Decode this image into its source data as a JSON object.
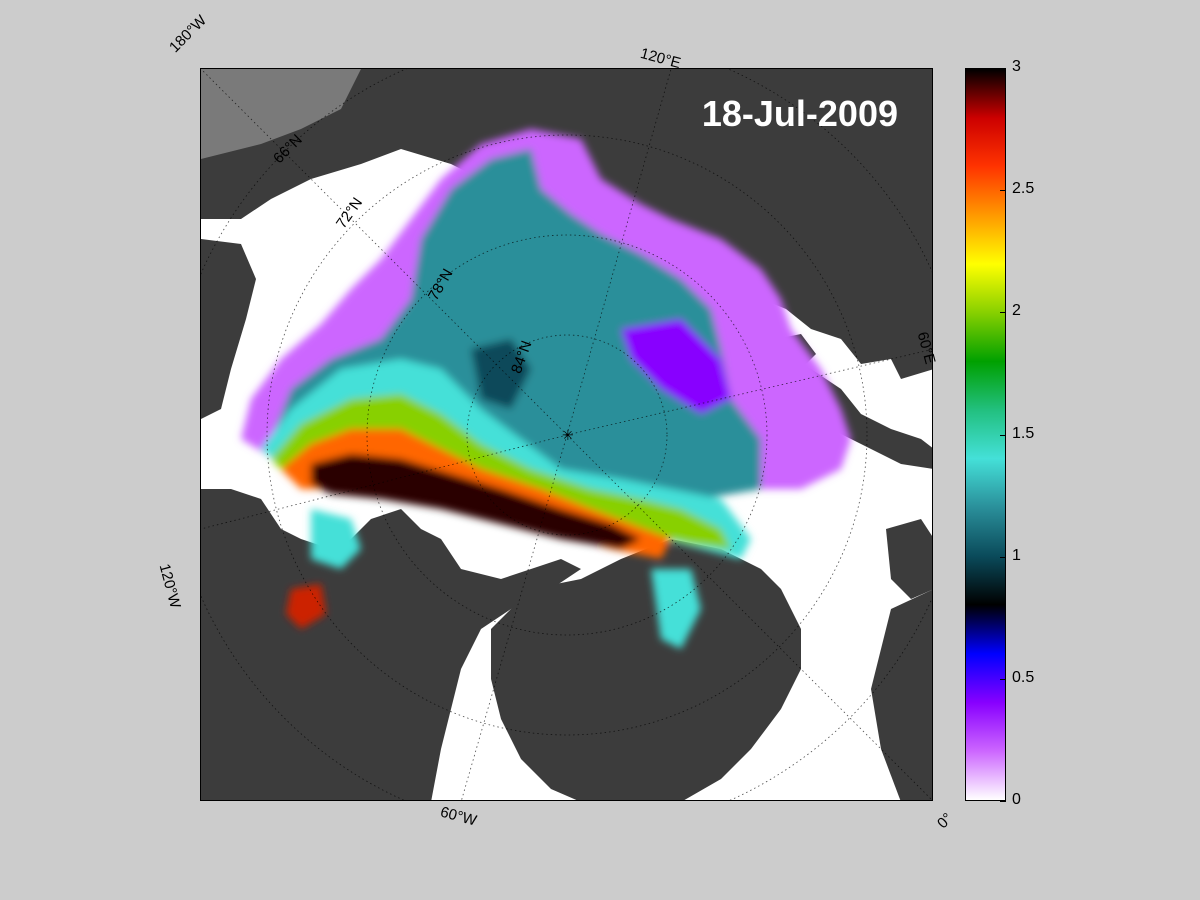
{
  "map": {
    "date": "18-Jul-2009",
    "outer_labels": {
      "lon_180w": "180°W",
      "lon_120e": "120°E",
      "lon_60e": "60°E",
      "lon_120w": "120°W",
      "lon_60w": "60°W",
      "lon_0": "0°"
    },
    "lat_labels": {
      "lat_66n": "66°N",
      "lat_72n": "72°N",
      "lat_78n": "78°N",
      "lat_84n": "84°N"
    }
  },
  "colorbar": {
    "min": 0,
    "max": 3,
    "ticks": [
      "0",
      "0.5",
      "1",
      "1.5",
      "2",
      "2.5",
      "3"
    ],
    "colors": [
      "#ffffff",
      "#cc66ff",
      "#8800ff",
      "#0000ff",
      "#000000",
      "#0a4a5a",
      "#2a8f9a",
      "#44e0d8",
      "#22c080",
      "#00a000",
      "#88d000",
      "#ffff00",
      "#ff9900",
      "#ff3300",
      "#cc0000",
      "#000000"
    ]
  },
  "colors": {
    "land": "#3c3c3c",
    "ocean": "#ffffff",
    "background": "#cccccc"
  }
}
